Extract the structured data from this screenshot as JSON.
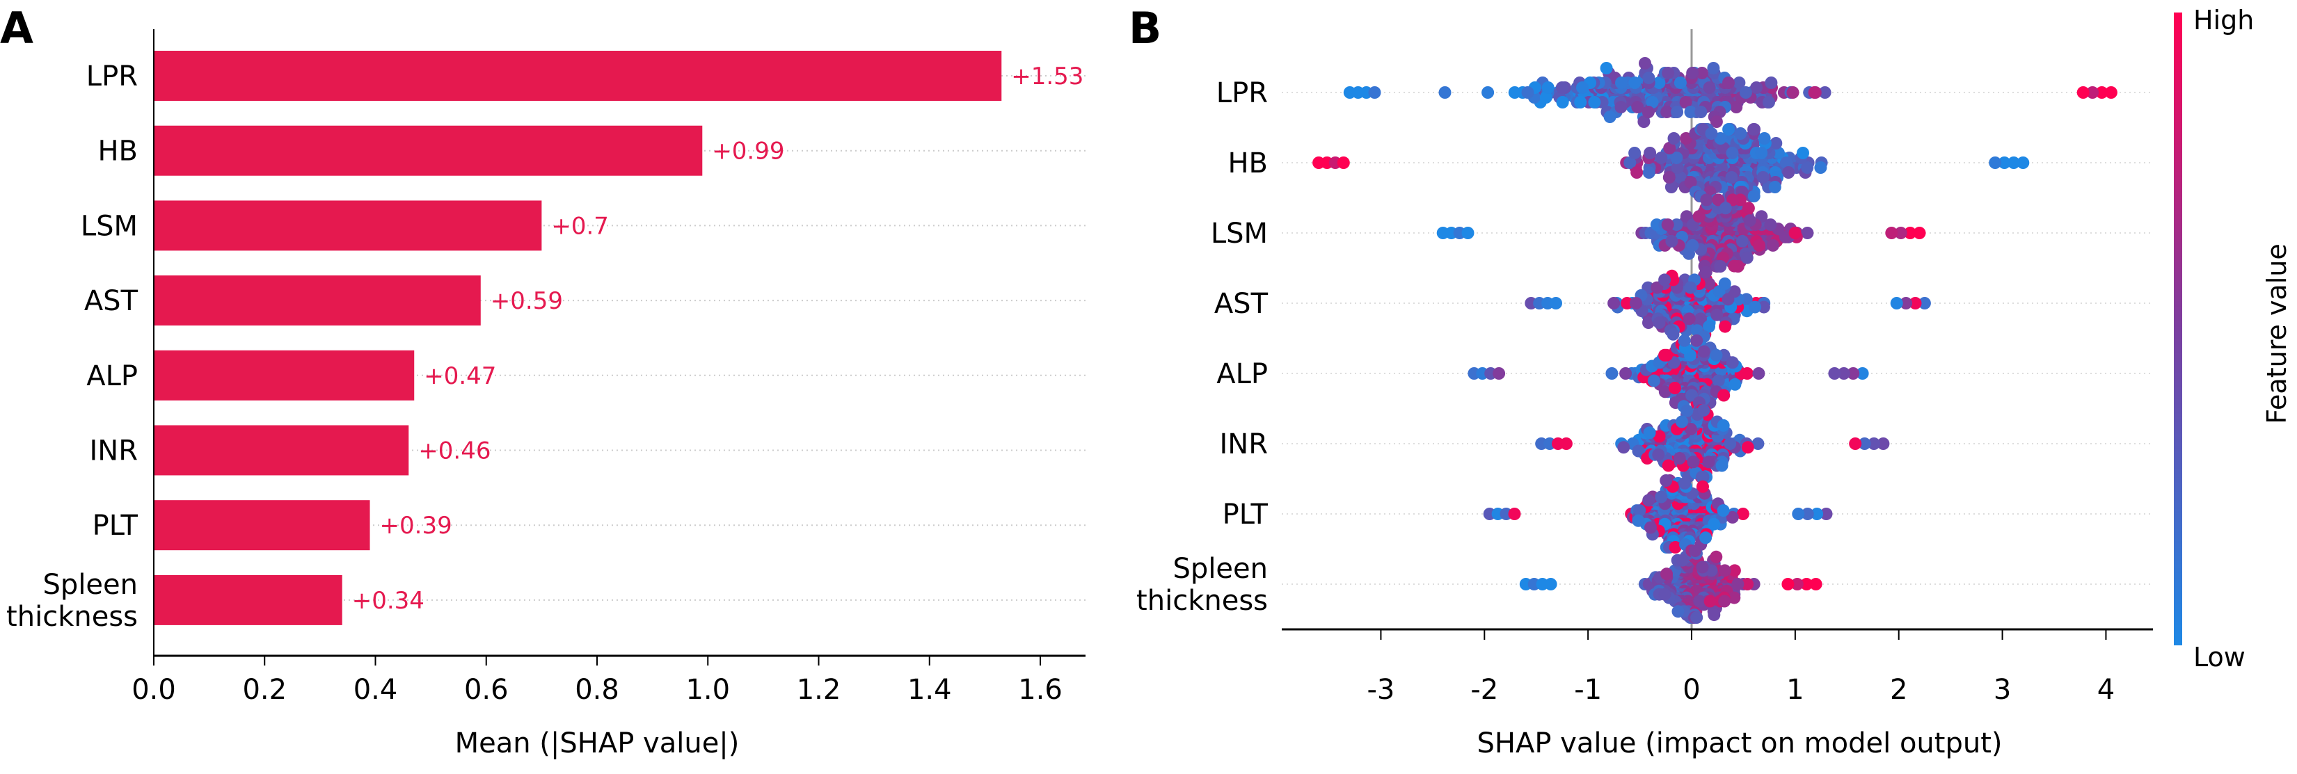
{
  "panels": {
    "a_letter": "A",
    "b_letter": "B"
  },
  "colors": {
    "bar": "#e5194f",
    "high": "#ff0052",
    "mid": "#7b3fa0",
    "low": "#1e88e5",
    "axis": "#000000",
    "zero_line": "#999999"
  },
  "chart_data": [
    {
      "type": "bar",
      "orientation": "horizontal",
      "title": "",
      "categories": [
        "LPR",
        "HB",
        "LSM",
        "AST",
        "ALP",
        "INR",
        "PLT",
        "Spleen thickness"
      ],
      "category_lines": [
        [
          "LPR"
        ],
        [
          "HB"
        ],
        [
          "LSM"
        ],
        [
          "AST"
        ],
        [
          "ALP"
        ],
        [
          "INR"
        ],
        [
          "PLT"
        ],
        [
          "Spleen",
          "thickness"
        ]
      ],
      "values": [
        1.53,
        0.99,
        0.7,
        0.59,
        0.47,
        0.46,
        0.39,
        0.34
      ],
      "data_labels": [
        "+1.53",
        "+0.99",
        "+0.7",
        "+0.59",
        "+0.47",
        "+0.46",
        "+0.39",
        "+0.34"
      ],
      "xlabel": "Mean (|SHAP value|)",
      "ylabel": "",
      "xlim": [
        0,
        1.68
      ],
      "xticks": [
        0.0,
        0.2,
        0.4,
        0.6,
        0.8,
        1.0,
        1.2,
        1.4,
        1.6
      ],
      "xtick_labels": [
        "0.0",
        "0.2",
        "0.4",
        "0.6",
        "0.8",
        "1.0",
        "1.2",
        "1.4",
        "1.6"
      ],
      "grid": "dotted horizontal row guides"
    },
    {
      "type": "scatter",
      "subtype": "beeswarm",
      "title": "",
      "categories": [
        "LPR",
        "HB",
        "LSM",
        "AST",
        "ALP",
        "INR",
        "PLT",
        "Spleen thickness"
      ],
      "category_lines": [
        [
          "LPR"
        ],
        [
          "HB"
        ],
        [
          "LSM"
        ],
        [
          "AST"
        ],
        [
          "ALP"
        ],
        [
          "INR"
        ],
        [
          "PLT"
        ],
        [
          "Spleen",
          "thickness"
        ]
      ],
      "xlabel": "SHAP value (impact on model output)",
      "xlim": [
        -3.95,
        4.5
      ],
      "xticks": [
        -3,
        -2,
        -1,
        0,
        1,
        2,
        3,
        4
      ],
      "xtick_labels": [
        "-3",
        "-2",
        "-1",
        "0",
        "1",
        "2",
        "3",
        "4"
      ],
      "series": [
        {
          "name": "LPR",
          "min": -3.3,
          "max": 4.05,
          "center": -0.3,
          "spread": 1.6,
          "width": 1.0,
          "color_trend": "high_positive",
          "n": 300
        },
        {
          "name": "HB",
          "min": -3.6,
          "max": 3.2,
          "center": 0.3,
          "spread": 0.9,
          "width": 1.0,
          "color_trend": "high_negative",
          "n": 300
        },
        {
          "name": "LSM",
          "min": -2.4,
          "max": 2.2,
          "center": 0.3,
          "spread": 0.75,
          "width": 0.85,
          "color_trend": "high_positive",
          "n": 260
        },
        {
          "name": "AST",
          "min": -1.55,
          "max": 2.25,
          "center": 0.0,
          "spread": 0.65,
          "width": 0.8,
          "color_trend": "mixed",
          "n": 240
        },
        {
          "name": "ALP",
          "min": -2.1,
          "max": 1.65,
          "center": 0.0,
          "spread": 0.6,
          "width": 0.75,
          "color_trend": "mixed",
          "n": 240
        },
        {
          "name": "INR",
          "min": -1.45,
          "max": 1.85,
          "center": 0.0,
          "spread": 0.6,
          "width": 0.75,
          "color_trend": "mixed",
          "n": 240
        },
        {
          "name": "PLT",
          "min": -1.95,
          "max": 1.3,
          "center": -0.1,
          "spread": 0.5,
          "width": 0.7,
          "color_trend": "mixed",
          "n": 240
        },
        {
          "name": "Spleen thickness",
          "min": -1.6,
          "max": 1.2,
          "center": 0.05,
          "spread": 0.45,
          "width": 0.7,
          "color_trend": "high_positive",
          "n": 230
        }
      ],
      "colorbar": {
        "label": "Feature value",
        "high_label": "High",
        "low_label": "Low",
        "colors": [
          "#1e88e5",
          "#7b3fa0",
          "#ff0052"
        ]
      }
    }
  ]
}
